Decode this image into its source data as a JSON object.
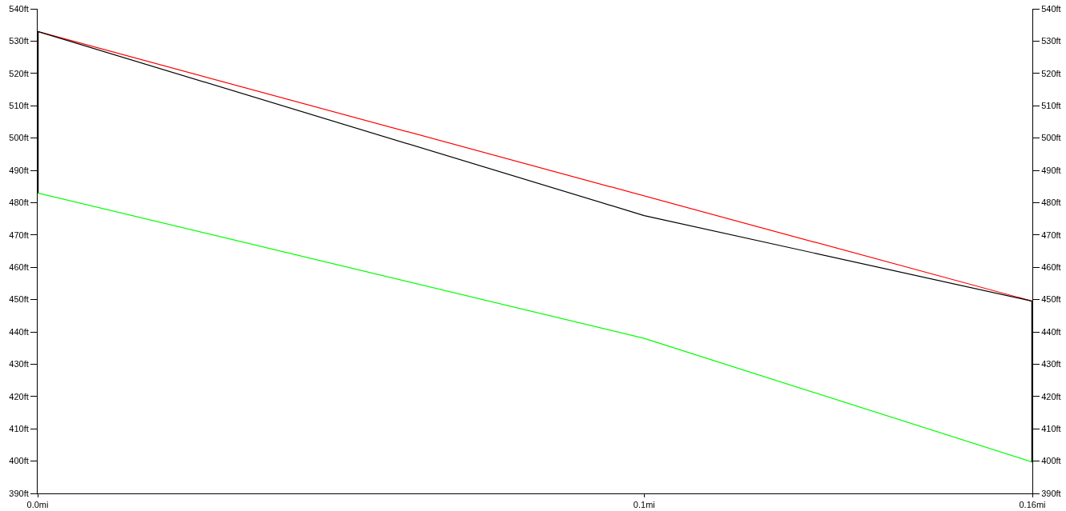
{
  "chart_data": {
    "type": "line",
    "series": [
      {
        "color": "#ff0000",
        "x": [
          0,
          0.164
        ],
        "values": [
          533,
          449.5
        ]
      },
      {
        "color": "#000000",
        "x": [
          0,
          0.1,
          0.164
        ],
        "values": [
          533,
          476,
          449.5
        ]
      },
      {
        "color": "#00ff00",
        "x": [
          0,
          0.1,
          0.164
        ],
        "values": [
          483,
          438,
          399.7
        ]
      },
      {
        "color": "#000000",
        "x": [
          0,
          0
        ],
        "values": [
          533,
          483
        ]
      },
      {
        "color": "#000000",
        "x": [
          0.164,
          0.164
        ],
        "values": [
          449.5,
          399.7
        ],
        "axis": "y2"
      }
    ],
    "xlim": [
      0,
      0.164
    ],
    "xticks": [
      {
        "value": 0,
        "label": "0.0mi"
      },
      {
        "value": 0.1,
        "label": "0.1mi"
      },
      {
        "value": 0.164,
        "label": "0.16mi"
      }
    ],
    "ylim": [
      390,
      540
    ],
    "yticks": [
      {
        "value": 390,
        "label": "390ft"
      },
      {
        "value": 400,
        "label": "400ft"
      },
      {
        "value": 410,
        "label": "410ft"
      },
      {
        "value": 420,
        "label": "420ft"
      },
      {
        "value": 430,
        "label": "430ft"
      },
      {
        "value": 440,
        "label": "440ft"
      },
      {
        "value": 450,
        "label": "450ft"
      },
      {
        "value": 460,
        "label": "460ft"
      },
      {
        "value": 470,
        "label": "470ft"
      },
      {
        "value": 480,
        "label": "480ft"
      },
      {
        "value": 490,
        "label": "490ft"
      },
      {
        "value": 500,
        "label": "500ft"
      },
      {
        "value": 510,
        "label": "510ft"
      },
      {
        "value": 520,
        "label": "520ft"
      },
      {
        "value": 530,
        "label": "530ft"
      },
      {
        "value": 540,
        "label": "540ft"
      }
    ],
    "y2lim": [
      390,
      540
    ],
    "y2ticks": [
      {
        "value": 390,
        "label": "390ft"
      },
      {
        "value": 400,
        "label": "400ft"
      },
      {
        "value": 410,
        "label": "410ft"
      },
      {
        "value": 420,
        "label": "420ft"
      },
      {
        "value": 430,
        "label": "430ft"
      },
      {
        "value": 440,
        "label": "440ft"
      },
      {
        "value": 450,
        "label": "450ft"
      },
      {
        "value": 460,
        "label": "460ft"
      },
      {
        "value": 470,
        "label": "470ft"
      },
      {
        "value": 480,
        "label": "480ft"
      },
      {
        "value": 490,
        "label": "490ft"
      },
      {
        "value": 500,
        "label": "500ft"
      },
      {
        "value": 510,
        "label": "510ft"
      },
      {
        "value": 520,
        "label": "520ft"
      },
      {
        "value": 530,
        "label": "530ft"
      },
      {
        "value": 540,
        "label": "540ft"
      }
    ],
    "grid": false
  }
}
